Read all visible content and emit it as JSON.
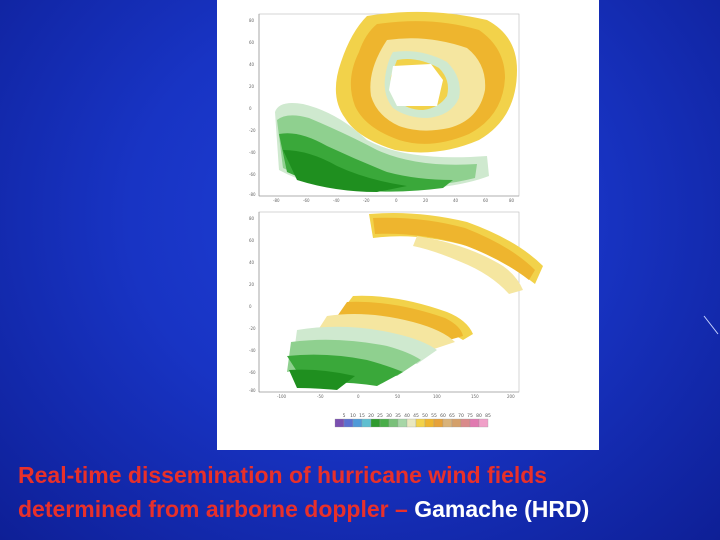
{
  "slide": {
    "caption_line1": "Real-time dissemination of hurricane wind fields",
    "caption_line2_prefix": "determined from airborne doppler – ",
    "caption_credit": "Gamache (HRD)",
    "caption_color": "#e8302a",
    "credit_color": "#ffffff",
    "background_color": "#1834c4"
  },
  "figure": {
    "top_panel_x_ticks": [
      "-80",
      "-60",
      "-40",
      "-20",
      "0",
      "20",
      "40",
      "60",
      "80"
    ],
    "top_panel_y_ticks": [
      "80",
      "60",
      "40",
      "20",
      "0",
      "-20",
      "-40",
      "-60",
      "-80"
    ],
    "bottom_panel_x_ticks": [
      "-100",
      "-50",
      "0",
      "50",
      "100",
      "150",
      "200"
    ],
    "bottom_panel_y_ticks": [
      "80",
      "60",
      "40",
      "20",
      "0",
      "-20",
      "-40",
      "-60",
      "-80"
    ],
    "colorbar_labels": [
      "5",
      "10",
      "15",
      "20",
      "25",
      "30",
      "35",
      "40",
      "45",
      "50",
      "55",
      "60",
      "65",
      "70",
      "75",
      "80",
      "85"
    ],
    "colorbar_colors": [
      "#7a4fb0",
      "#5b6fd0",
      "#4f9ad8",
      "#5fbfd0",
      "#2e9a2e",
      "#48ad48",
      "#79c079",
      "#a6d6a6",
      "#e9e8c0",
      "#f2d24a",
      "#eeb52e",
      "#e6a23a",
      "#d9b37a",
      "#d4a06a",
      "#d98a8a",
      "#e07ab0",
      "#f0a0c8"
    ]
  }
}
